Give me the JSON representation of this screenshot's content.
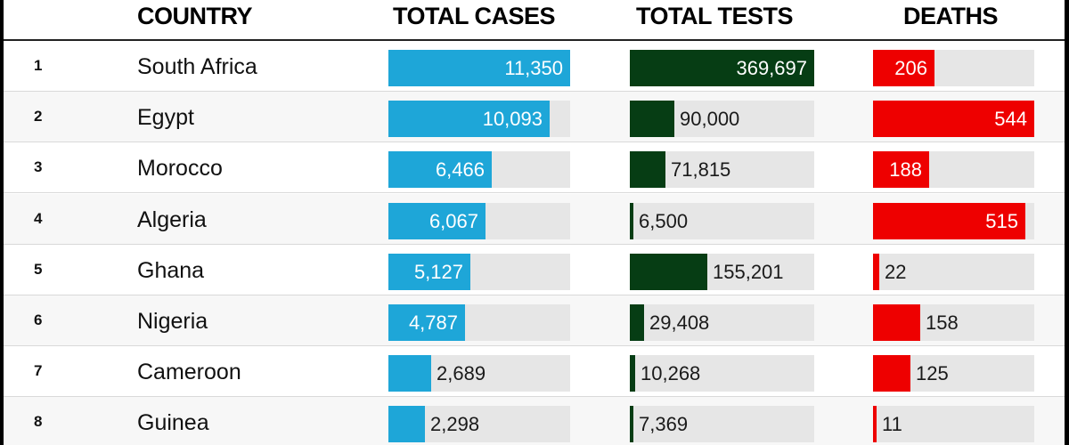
{
  "headers": {
    "country": "COUNTRY",
    "cases": "TOTAL CASES",
    "tests": "TOTAL TESTS",
    "deaths": "DEATHS"
  },
  "colors": {
    "cases": "#1ea6d8",
    "tests": "#063d14",
    "deaths": "#ee0000",
    "track": "#e6e6e6"
  },
  "chart_data": {
    "type": "table",
    "columns": [
      "COUNTRY",
      "TOTAL CASES",
      "TOTAL TESTS",
      "DEATHS"
    ],
    "rows": [
      {
        "rank": "1",
        "country": "South Africa",
        "cases": 11350,
        "tests": 369697,
        "deaths": 206,
        "cases_label": "11,350",
        "tests_label": "369,697",
        "deaths_label": "206"
      },
      {
        "rank": "2",
        "country": "Egypt",
        "cases": 10093,
        "tests": 90000,
        "deaths": 544,
        "cases_label": "10,093",
        "tests_label": "90,000",
        "deaths_label": "544"
      },
      {
        "rank": "3",
        "country": "Morocco",
        "cases": 6466,
        "tests": 71815,
        "deaths": 188,
        "cases_label": "6,466",
        "tests_label": "71,815",
        "deaths_label": "188"
      },
      {
        "rank": "4",
        "country": "Algeria",
        "cases": 6067,
        "tests": 6500,
        "deaths": 515,
        "cases_label": "6,067",
        "tests_label": "6,500",
        "deaths_label": "515"
      },
      {
        "rank": "5",
        "country": "Ghana",
        "cases": 5127,
        "tests": 155201,
        "deaths": 22,
        "cases_label": "5,127",
        "tests_label": "155,201",
        "deaths_label": "22"
      },
      {
        "rank": "6",
        "country": "Nigeria",
        "cases": 4787,
        "tests": 29408,
        "deaths": 158,
        "cases_label": "4,787",
        "tests_label": "29,408",
        "deaths_label": "158"
      },
      {
        "rank": "7",
        "country": "Cameroon",
        "cases": 2689,
        "tests": 10268,
        "deaths": 125,
        "cases_label": "2,689",
        "tests_label": "10,268",
        "deaths_label": "125"
      },
      {
        "rank": "8",
        "country": "Guinea",
        "cases": 2298,
        "tests": 7369,
        "deaths": 11,
        "cases_label": "2,298",
        "tests_label": "7,369",
        "deaths_label": "11"
      }
    ]
  }
}
